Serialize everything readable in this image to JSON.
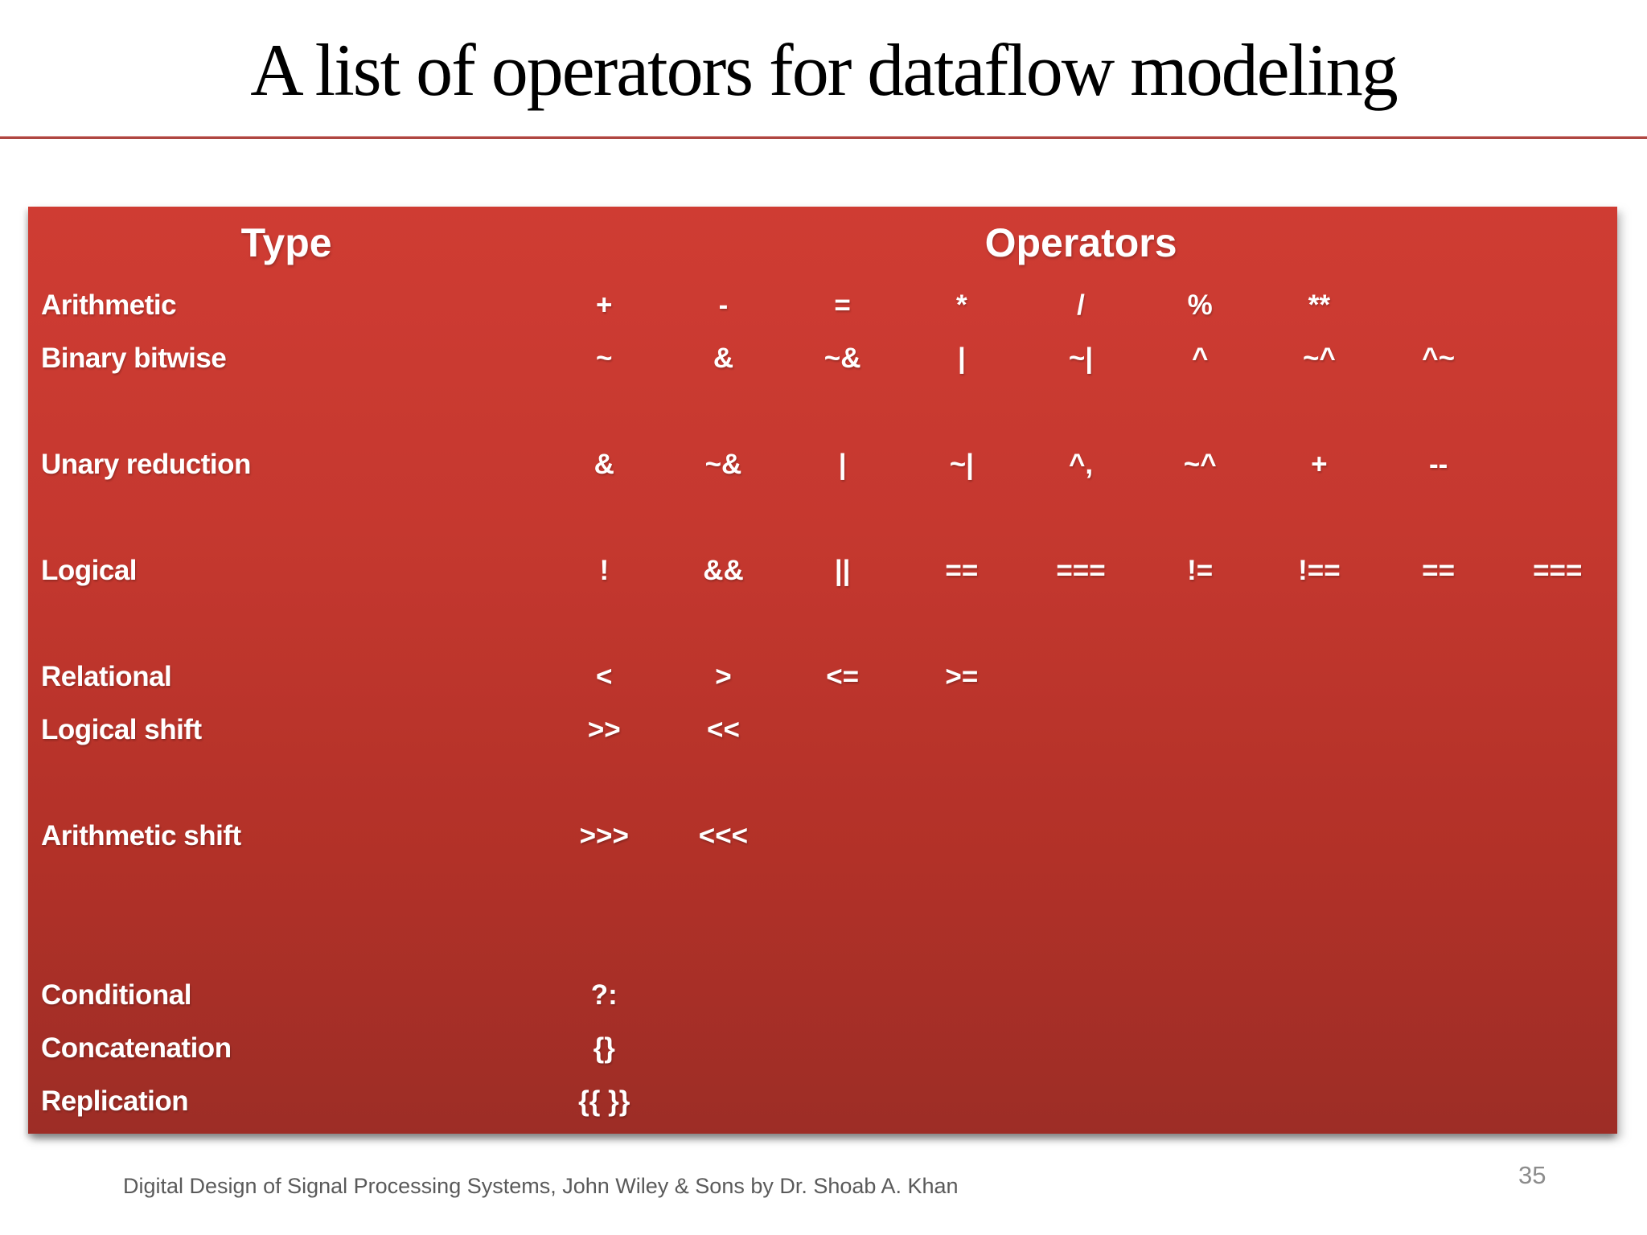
{
  "slide": {
    "title": "A list of operators for dataflow modeling",
    "citation": "Digital Design of Signal Processing Systems, John Wiley & Sons by Dr. Shoab A. Khan",
    "page_number": "35"
  },
  "table": {
    "headers": {
      "type": "Type",
      "operators": "Operators"
    },
    "rows": [
      {
        "label": "Arithmetic",
        "ops": [
          "+",
          "-",
          "=",
          "*",
          "/",
          "%",
          "**"
        ]
      },
      {
        "label": "Binary bitwise",
        "ops": [
          "~",
          "&",
          "~&",
          "|",
          "~|",
          "^",
          "~^",
          "^~"
        ]
      },
      {
        "label": "Unary reduction",
        "ops": [
          "&",
          "~&",
          "|",
          "~|",
          "^,",
          "~^",
          "+",
          "--"
        ]
      },
      {
        "label": "Logical",
        "ops": [
          "!",
          "&&",
          "||",
          "==",
          "===",
          "!=",
          "!==",
          "==",
          "==="
        ]
      },
      {
        "label": "Relational",
        "ops": [
          "<",
          ">",
          "<=",
          ">="
        ]
      },
      {
        "label": "Logical shift",
        "ops": [
          ">>",
          "<<"
        ]
      },
      {
        "label": "Arithmetic shift",
        "ops": [
          ">>>",
          "<<<"
        ]
      },
      {
        "label": "Conditional",
        "ops": [
          "?:"
        ]
      },
      {
        "label": "Concatenation",
        "ops": [
          "{}"
        ]
      },
      {
        "label": "Replication",
        "ops": [
          "{{ }}"
        ]
      }
    ]
  },
  "colors": {
    "table_gradient_top": "#cf3c33",
    "table_gradient_bottom": "#9d2d26",
    "table_text": "#ffffff",
    "title_text": "#000000",
    "title_rule": "#ae4742",
    "citation_text": "#5a5a5a",
    "page_number_text": "#8c8c8c"
  }
}
